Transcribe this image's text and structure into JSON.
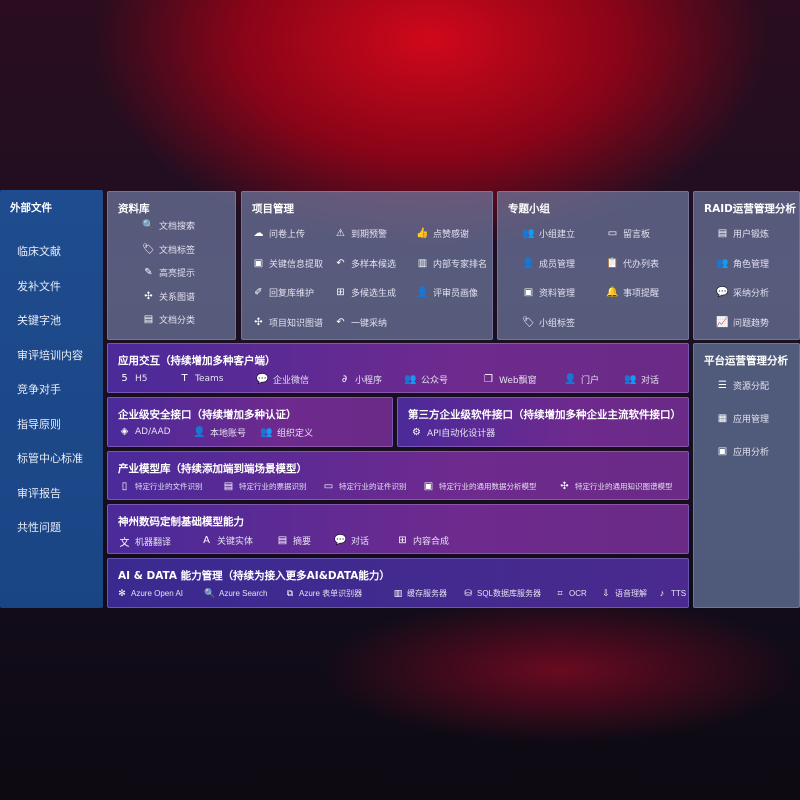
{
  "sidebar": {
    "title": "外部文件",
    "items": [
      "临床文献",
      "发补文件",
      "关键字池",
      "审评培训内容",
      "竞争对手",
      "指导原则",
      "标管中心标准",
      "审评报告",
      "共性问题"
    ]
  },
  "panels": {
    "library": {
      "title": "资料库",
      "items": [
        {
          "icon": "doc-search-icon",
          "g": "🔍",
          "label": "文档搜索"
        },
        {
          "icon": "tag-icon",
          "g": "🏷",
          "label": "文档标签"
        },
        {
          "icon": "highlight-pen-icon",
          "g": "✎",
          "label": "高亮提示"
        },
        {
          "icon": "relation-graph-icon",
          "g": "✣",
          "label": "关系图谱"
        },
        {
          "icon": "doc-category-icon",
          "g": "▤",
          "label": "文档分类"
        }
      ]
    },
    "project": {
      "title": "项目管理",
      "items": [
        {
          "icon": "cloud-upload-icon",
          "g": "☁",
          "label": "问卷上传"
        },
        {
          "icon": "alarm-icon",
          "g": "⚠",
          "label": "到期预警"
        },
        {
          "icon": "thumbs-up-icon",
          "g": "👍",
          "label": "点赞感谢"
        },
        {
          "icon": "info-extract-icon",
          "g": "▣",
          "label": "关键信息提取"
        },
        {
          "icon": "reply-icon",
          "g": "↶",
          "label": "多样本候选"
        },
        {
          "icon": "ranking-icon",
          "g": "▥",
          "label": "内部专家排名"
        },
        {
          "icon": "edit-icon",
          "g": "✐",
          "label": "回复库维护"
        },
        {
          "icon": "puzzle-icon",
          "g": "⊞",
          "label": "多候选生成"
        },
        {
          "icon": "user-icon",
          "g": "👤",
          "label": "评审员画像"
        },
        {
          "icon": "knowledge-graph-icon",
          "g": "✣",
          "label": "项目知识图谱"
        },
        {
          "icon": "reply-icon",
          "g": "↶",
          "label": "一键采纳"
        }
      ]
    },
    "group": {
      "title": "专题小组",
      "items": [
        {
          "icon": "group-icon",
          "g": "👥",
          "label": "小组建立"
        },
        {
          "icon": "bbs-icon",
          "g": "▭",
          "label": "留言板"
        },
        {
          "icon": "member-icon",
          "g": "👤",
          "label": "成员管理"
        },
        {
          "icon": "clipboard-icon",
          "g": "📋",
          "label": "代办列表"
        },
        {
          "icon": "folder-icon",
          "g": "▣",
          "label": "资料管理"
        },
        {
          "icon": "bell-icon",
          "g": "🔔",
          "label": "事项提醒"
        },
        {
          "icon": "tag-icon",
          "g": "🏷",
          "label": "小组标签"
        }
      ]
    },
    "raid": {
      "title": "RAID运营管理分析",
      "items": [
        {
          "icon": "id-card-icon",
          "g": "▤",
          "label": "用户锻炼"
        },
        {
          "icon": "users-icon",
          "g": "👥",
          "label": "角色管理"
        },
        {
          "icon": "qa-icon",
          "g": "💬",
          "label": "采纳分析"
        },
        {
          "icon": "trend-icon",
          "g": "📈",
          "label": "问题趋势"
        }
      ]
    },
    "platform": {
      "title": "平台运营管理分析",
      "items": [
        {
          "icon": "checklist-icon",
          "g": "☰",
          "label": "资源分配"
        },
        {
          "icon": "apps-icon",
          "g": "▦",
          "label": "应用管理"
        },
        {
          "icon": "analysis-icon",
          "g": "▣",
          "label": "应用分析"
        }
      ]
    },
    "interaction": {
      "title": "应用交互（持续增加多种客户端）",
      "items": [
        {
          "icon": "html5-icon",
          "g": "5",
          "label": "H5"
        },
        {
          "icon": "teams-icon",
          "g": "T",
          "label": "Teams"
        },
        {
          "icon": "wecom-icon",
          "g": "💬",
          "label": "企业微信"
        },
        {
          "icon": "mini-program-icon",
          "g": "∂",
          "label": "小程序"
        },
        {
          "icon": "official-account-icon",
          "g": "👥",
          "label": "公众号"
        },
        {
          "icon": "web-window-icon",
          "g": "❐",
          "label": "Web飘窗"
        },
        {
          "icon": "portal-icon",
          "g": "👤",
          "label": "门户"
        },
        {
          "icon": "chat-icon",
          "g": "👥",
          "label": "对话"
        }
      ]
    },
    "security": {
      "title": "企业级安全接口（持续增加多种认证）",
      "items": [
        {
          "icon": "ad-icon",
          "g": "◈",
          "label": "AD/AAD"
        },
        {
          "icon": "local-account-icon",
          "g": "👤",
          "label": "本地账号"
        },
        {
          "icon": "org-icon",
          "g": "👥",
          "label": "组织定义"
        }
      ]
    },
    "thirdparty": {
      "title": "第三方企业级软件接口（持续增加多种企业主流软件接口）",
      "items": [
        {
          "icon": "api-gear-icon",
          "g": "⚙",
          "label": "API自动化设计器"
        }
      ]
    },
    "industry": {
      "title": "产业模型库（持续添加端到端场景模型）",
      "items": [
        {
          "icon": "file-icon",
          "g": "▯",
          "label": "特定行业的文件识别"
        },
        {
          "icon": "receipt-icon",
          "g": "▤",
          "label": "特定行业的票据识别"
        },
        {
          "icon": "certificate-icon",
          "g": "▭",
          "label": "特定行业的证件识别"
        },
        {
          "icon": "data-analysis-icon",
          "g": "▣",
          "label": "特定行业的通用数据分析模型"
        },
        {
          "icon": "knowledge-graph-icon",
          "g": "✣",
          "label": "特定行业的通用知识图谱模型"
        }
      ]
    },
    "base": {
      "title": "神州数码定制基础模型能力",
      "items": [
        {
          "icon": "translate-icon",
          "g": "文",
          "label": "机器翻译"
        },
        {
          "icon": "entity-icon",
          "g": "A",
          "label": "关键实体"
        },
        {
          "icon": "summary-icon",
          "g": "▤",
          "label": "摘要"
        },
        {
          "icon": "chat-bubble-icon",
          "g": "💬",
          "label": "对话"
        },
        {
          "icon": "content-compose-icon",
          "g": "⊞",
          "label": "内容合成"
        }
      ]
    },
    "aidata": {
      "title": "AI & DATA 能力管理（持续为接入更多AI&DATA能力）",
      "items": [
        {
          "icon": "openai-icon",
          "g": "✻",
          "label": "Azure Open AI"
        },
        {
          "icon": "search-doc-icon",
          "g": "🔍",
          "label": "Azure Search"
        },
        {
          "icon": "form-recognizer-icon",
          "g": "⧉",
          "label": "Azure 表单识别器"
        },
        {
          "icon": "cache-server-icon",
          "g": "▥",
          "label": "缓存服务器"
        },
        {
          "icon": "sql-icon",
          "g": "⛁",
          "label": "SQL数据库服务器"
        },
        {
          "icon": "ocr-icon",
          "g": "⌗",
          "label": "OCR"
        },
        {
          "icon": "speech-icon",
          "g": "⇩",
          "label": "语音理解"
        },
        {
          "icon": "tts-icon",
          "g": "♪",
          "label": "TTS"
        }
      ]
    }
  }
}
